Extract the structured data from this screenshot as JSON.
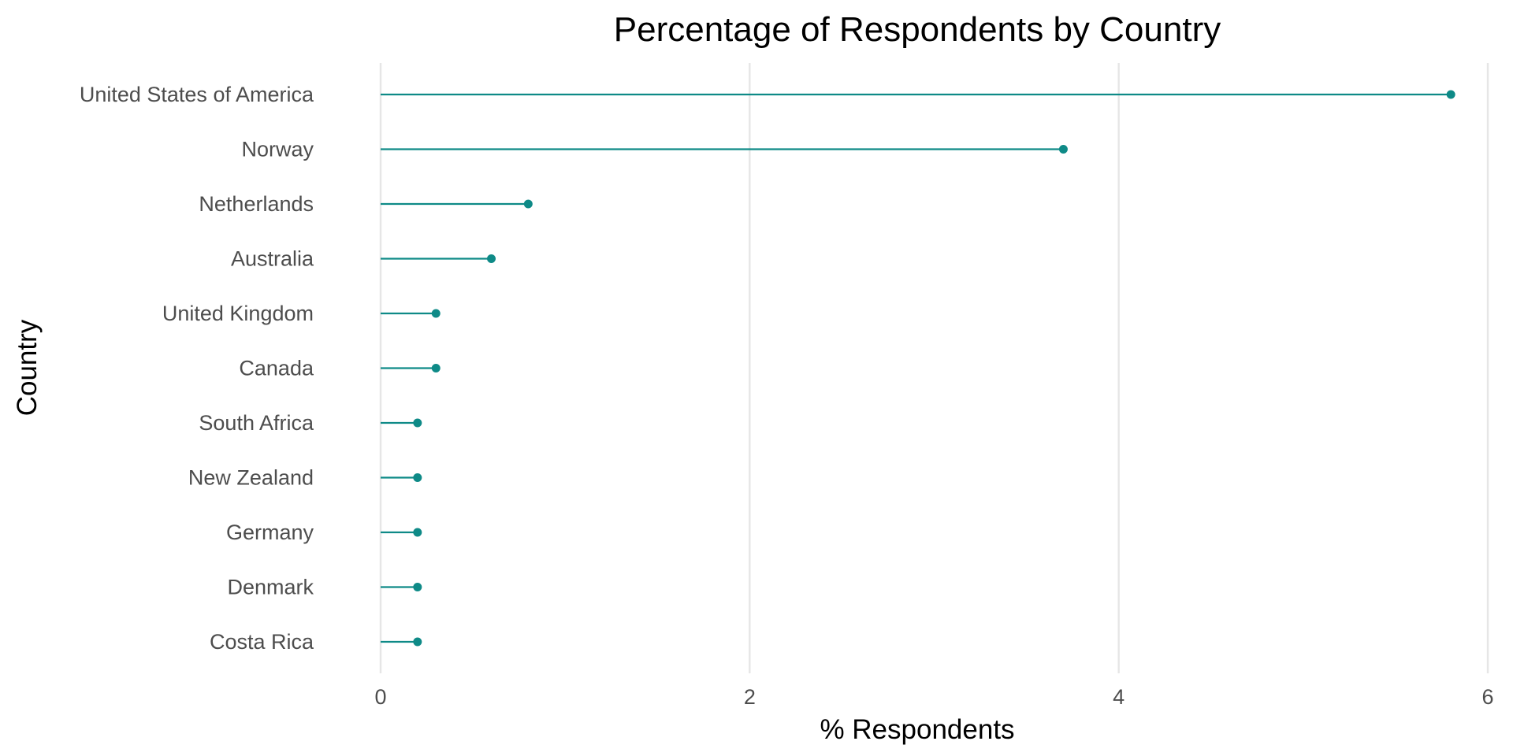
{
  "chart_data": {
    "type": "lollipop",
    "title": "Percentage of Respondents by Country",
    "xlabel": "% Respondents",
    "ylabel": "Country",
    "xlim": [
      0,
      6
    ],
    "xticks": [
      0,
      2,
      4,
      6
    ],
    "grid": "vertical major",
    "legend": "none",
    "color": "#0e8a87",
    "categories": [
      "United States of America",
      "Norway",
      "Netherlands",
      "Australia",
      "United Kingdom",
      "Canada",
      "South Africa",
      "New Zealand",
      "Germany",
      "Denmark",
      "Costa Rica"
    ],
    "values": [
      5.8,
      3.7,
      0.8,
      0.6,
      0.3,
      0.3,
      0.2,
      0.2,
      0.2,
      0.2,
      0.2
    ]
  }
}
